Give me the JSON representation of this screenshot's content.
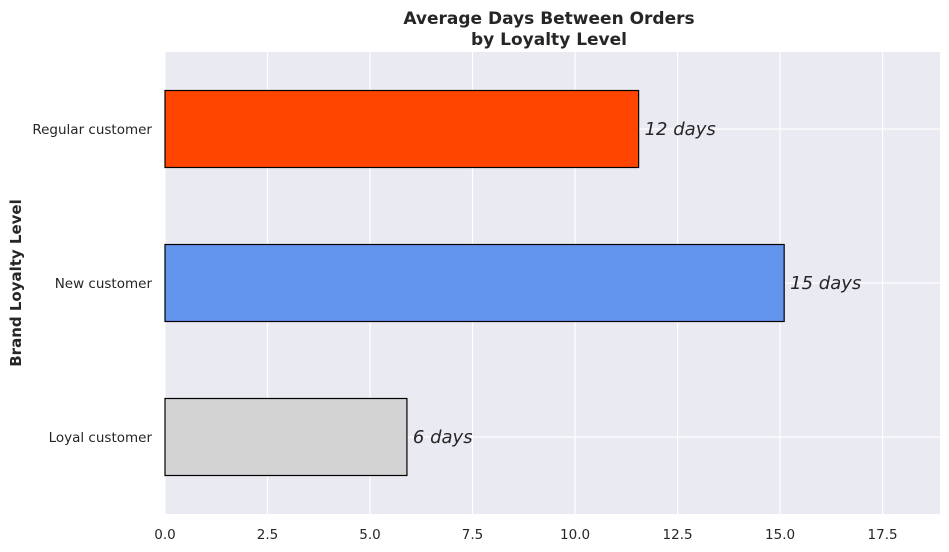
{
  "chart_data": {
    "type": "bar",
    "orientation": "horizontal",
    "title_line1": "Average Days Between Orders",
    "title_line2": "by Loyalty Level",
    "xlabel": "",
    "ylabel": "Brand Loyalty Level",
    "categories": [
      "Loyal customer",
      "New customer",
      "Regular customer"
    ],
    "values": [
      5.9,
      15.1,
      11.55
    ],
    "bar_labels": [
      "6 days",
      "15 days",
      "12 days"
    ],
    "colors": [
      "#d3d3d3",
      "#6495ed",
      "#ff4500"
    ],
    "edge_color": "#000000",
    "background_color": "#eaeaf2",
    "grid": true,
    "xlim": [
      0,
      18.9
    ],
    "xticks": [
      "0.0",
      "2.5",
      "5.0",
      "7.5",
      "10.0",
      "12.5",
      "15.0",
      "17.5"
    ]
  }
}
